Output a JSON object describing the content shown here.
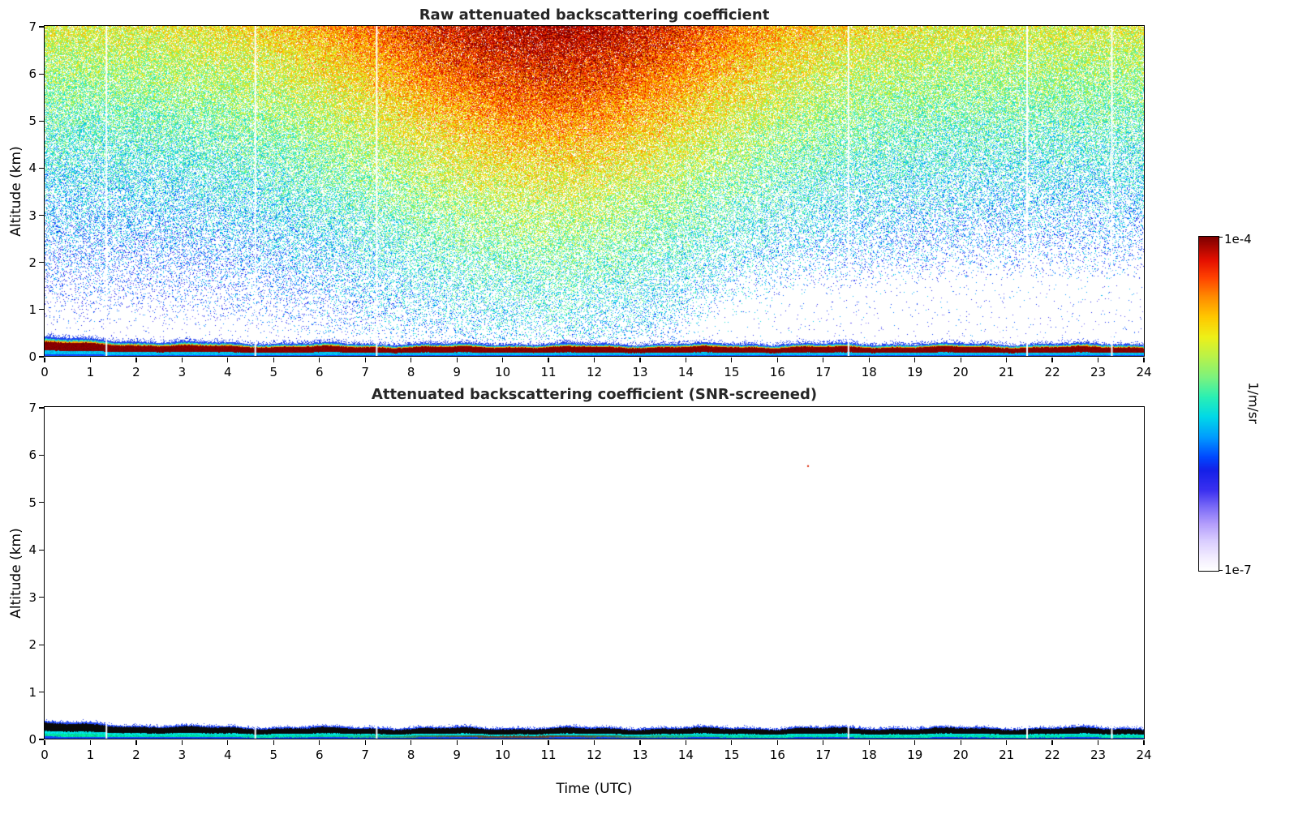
{
  "figure": {
    "background": "#ffffff",
    "xlabel": "Time (UTC)",
    "ylabel": "Altitude (km)"
  },
  "colorbar": {
    "top_label": "1e-4",
    "bottom_label": "1e-7",
    "units": "1/m/sr",
    "scale": "log"
  },
  "colormap": [
    {
      "v": 0.0,
      "c": "#ffffff"
    },
    {
      "v": 0.04,
      "c": "#f2ecff"
    },
    {
      "v": 0.09,
      "c": "#d9ccff"
    },
    {
      "v": 0.14,
      "c": "#b39dfc"
    },
    {
      "v": 0.19,
      "c": "#7b6bf7"
    },
    {
      "v": 0.24,
      "c": "#3b30f0"
    },
    {
      "v": 0.3,
      "c": "#1520e8"
    },
    {
      "v": 0.34,
      "c": "#0048ff"
    },
    {
      "v": 0.4,
      "c": "#009cff"
    },
    {
      "v": 0.46,
      "c": "#00d8e8"
    },
    {
      "v": 0.52,
      "c": "#2af0b4"
    },
    {
      "v": 0.58,
      "c": "#7df27d"
    },
    {
      "v": 0.64,
      "c": "#b8f24a"
    },
    {
      "v": 0.7,
      "c": "#eef018"
    },
    {
      "v": 0.76,
      "c": "#ffc800"
    },
    {
      "v": 0.82,
      "c": "#ff8c00"
    },
    {
      "v": 0.88,
      "c": "#ff4000"
    },
    {
      "v": 0.93,
      "c": "#e51000"
    },
    {
      "v": 1.0,
      "c": "#7f0000"
    }
  ],
  "chart_data": [
    {
      "type": "heatmap",
      "title": "Raw attenuated backscattering coefficient",
      "xlabel": "Time (UTC)",
      "ylabel": "Altitude (km)",
      "x_range": [
        0,
        24
      ],
      "y_range": [
        0,
        7
      ],
      "x_ticks": [
        0,
        1,
        2,
        3,
        4,
        5,
        6,
        7,
        8,
        9,
        10,
        11,
        12,
        13,
        14,
        15,
        16,
        17,
        18,
        19,
        20,
        21,
        22,
        23,
        24
      ],
      "y_ticks": [
        0,
        1,
        2,
        3,
        4,
        5,
        6,
        7
      ],
      "value_range": [
        "1e-7",
        "1e-4"
      ],
      "units": "1/m/sr",
      "gap_times": [
        1.35,
        4.6,
        7.25,
        17.55,
        21.45,
        23.3
      ],
      "noise_model": {
        "daylight": {
          "center": 11.0,
          "width": 4.8
        },
        "evening": {
          "start": 13.5,
          "ramp": 1.5,
          "coef": 0.2
        },
        "density": {
          "base": -0.1,
          "alt_coef": 0.9,
          "alt_pow": 0.9,
          "day_coef": 0.38,
          "day_alt_mix": 0.45,
          "floor": 0.012,
          "max": 0.93
        },
        "value": {
          "base": 0.25,
          "alt_coef": 0.43,
          "alt_pow": 1.2,
          "day_coef": 0.32,
          "day_alt_mix": 0.5,
          "jitter": 0.13
        }
      },
      "surface_layer": {
        "seed": 7,
        "daylight": {
          "center": 10.5,
          "width": 2.8
        },
        "top_km": {
          "base": 0.26,
          "decay_amp": 0.15,
          "decay_tau": 2.2,
          "wiggles": [
            [
              0.022,
              2.3,
              0.0
            ],
            [
              0.012,
              6.1,
              1.7
            ]
          ],
          "jitter": 0.012
        },
        "bands": [
          {
            "f0": 0.0,
            "f1": 0.1,
            "color": "#1244ff"
          },
          {
            "f0": 0.1,
            "f1": 0.3,
            "color": "#00c0f0"
          },
          {
            "f0": 0.3,
            "f1": 0.74,
            "color": "#870000"
          },
          {
            "f0": 0.74,
            "f1": 0.81,
            "color": "#ffa000"
          },
          {
            "f0": 0.81,
            "f1": 0.9,
            "color": "#20d8c0"
          },
          {
            "f0": 0.9,
            "f1": 1.0,
            "color": "#2248f8"
          }
        ],
        "fringe": {
          "height_km": 0.09,
          "density": 0.45,
          "color": "#2743f5"
        }
      }
    },
    {
      "type": "heatmap",
      "title": "Attenuated backscattering coefficient (SNR-screened)",
      "xlabel": "Time (UTC)",
      "ylabel": "Altitude (km)",
      "x_range": [
        0,
        24
      ],
      "y_range": [
        0,
        7
      ],
      "x_ticks": [
        0,
        1,
        2,
        3,
        4,
        5,
        6,
        7,
        8,
        9,
        10,
        11,
        12,
        13,
        14,
        15,
        16,
        17,
        18,
        19,
        20,
        21,
        22,
        23,
        24
      ],
      "y_ticks": [
        0,
        1,
        2,
        3,
        4,
        5,
        6,
        7
      ],
      "value_range": [
        "1e-7",
        "1e-4"
      ],
      "units": "1/m/sr",
      "gap_times": [
        1.35,
        4.6,
        7.25,
        17.55,
        21.45,
        23.3
      ],
      "noise_model": null,
      "surface_layer": {
        "seed": 13,
        "daylight": {
          "center": 10.5,
          "width": 2.8
        },
        "top_km": {
          "base": 0.24,
          "decay_amp": 0.13,
          "decay_tau": 2.2,
          "wiggles": [
            [
              0.022,
              2.3,
              0.0
            ],
            [
              0.012,
              6.1,
              1.7
            ]
          ],
          "jitter": 0.012
        },
        "bands": [
          {
            "f0": 0.0,
            "f1": 0.14,
            "color": "#1244ff"
          },
          {
            "f0": 0.14,
            "f1": 0.3,
            "color": "#00e0a0",
            "day_blend": {
              "color": "#8a1000",
              "amount": 0.75
            }
          },
          {
            "f0": 0.3,
            "f1": 0.44,
            "color": "#00e0e0"
          },
          {
            "f0": 0.44,
            "f1": 0.9,
            "color": "#0a0a0a"
          },
          {
            "f0": 0.9,
            "f1": 1.0,
            "color": "#2248f8"
          }
        ],
        "fringe": {
          "height_km": 0.05,
          "density": 0.35,
          "color": "#2743f5"
        }
      },
      "outliers": [
        {
          "t": 16.65,
          "alt": 5.77,
          "color": "#dd2200"
        }
      ]
    }
  ]
}
